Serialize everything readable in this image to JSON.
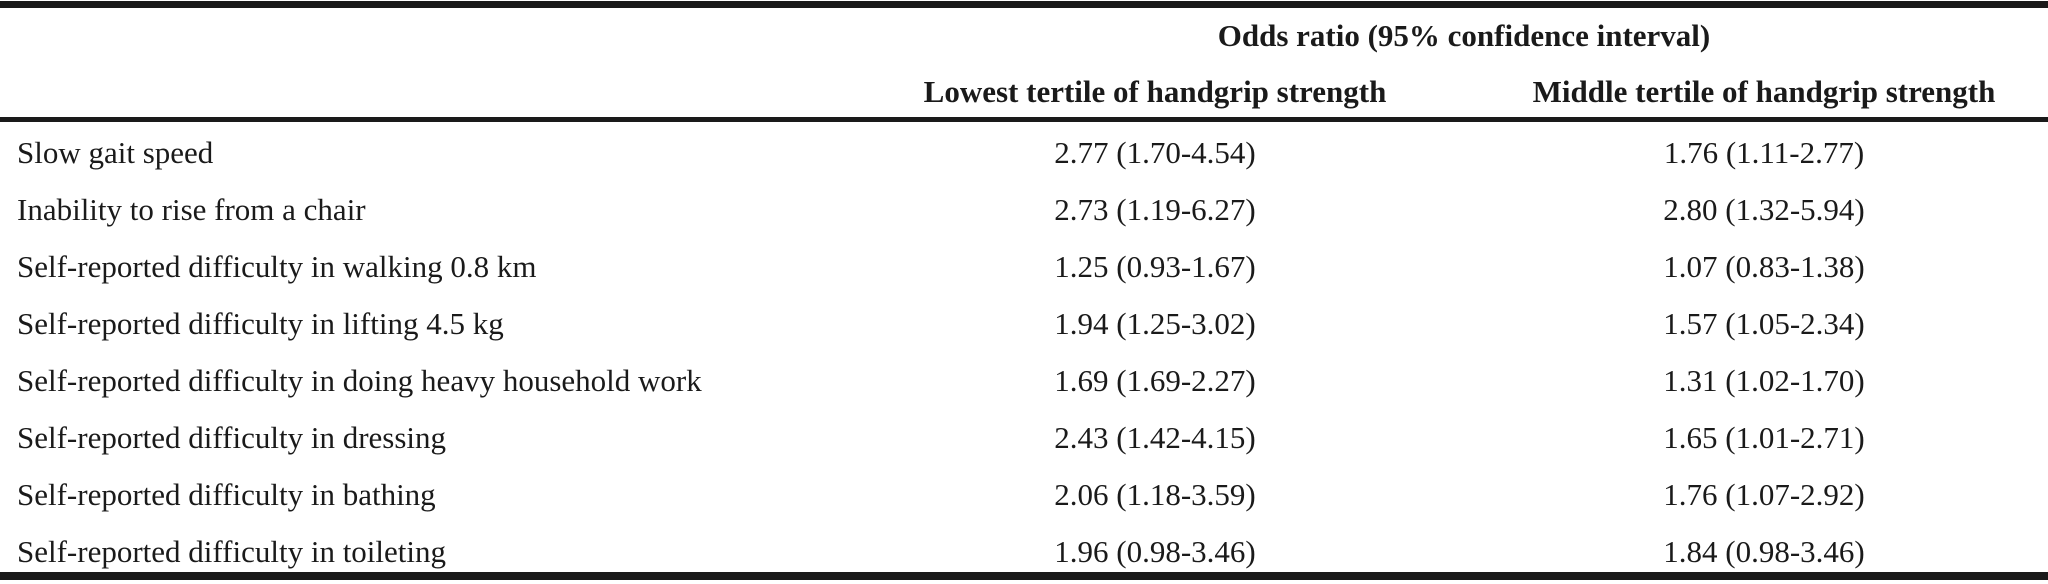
{
  "table": {
    "group_header": "Odds ratio (95% confidence interval)",
    "columns": [
      "Lowest tertile of handgrip strength",
      "Middle tertile of handgrip strength"
    ],
    "rows": [
      {
        "label": "Slow gait speed",
        "lowest": "2.77 (1.70-4.54)",
        "middle": "1.76 (1.11-2.77)"
      },
      {
        "label": "Inability to rise from a chair",
        "lowest": "2.73 (1.19-6.27)",
        "middle": "2.80 (1.32-5.94)"
      },
      {
        "label": "Self-reported difficulty in walking 0.8 km",
        "lowest": "1.25 (0.93-1.67)",
        "middle": "1.07 (0.83-1.38)"
      },
      {
        "label": "Self-reported difficulty in lifting 4.5 kg",
        "lowest": "1.94 (1.25-3.02)",
        "middle": "1.57 (1.05-2.34)"
      },
      {
        "label": "Self-reported difficulty in doing heavy household work",
        "lowest": "1.69 (1.69-2.27)",
        "middle": "1.31 (1.02-1.70)"
      },
      {
        "label": "Self-reported difficulty in dressing",
        "lowest": "2.43 (1.42-4.15)",
        "middle": "1.65 (1.01-2.71)"
      },
      {
        "label": "Self-reported difficulty in bathing",
        "lowest": "2.06 (1.18-3.59)",
        "middle": "1.76 (1.07-2.92)"
      },
      {
        "label": "Self-reported difficulty in toileting",
        "lowest": "1.96 (0.98-3.46)",
        "middle": "1.84 (0.98-3.46)"
      }
    ]
  }
}
